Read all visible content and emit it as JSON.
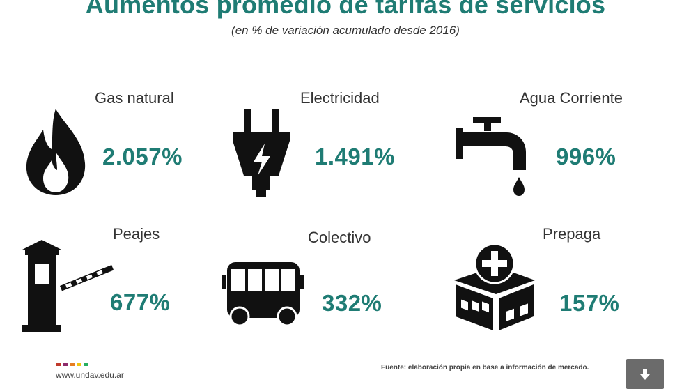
{
  "header": {
    "title": "Aumentos promedio de tarifas de servicios",
    "subtitle": "(en % de variación acumulado desde 2016)"
  },
  "items": [
    {
      "label": "Gas natural",
      "value": "2.057%",
      "icon": "flame-icon"
    },
    {
      "label": "Electricidad",
      "value": "1.491%",
      "icon": "plug-icon"
    },
    {
      "label": "Agua Corriente",
      "value": "996%",
      "icon": "faucet-icon"
    },
    {
      "label": "Peajes",
      "value": "677%",
      "icon": "toll-booth-icon"
    },
    {
      "label": "Colectivo",
      "value": "332%",
      "icon": "bus-icon"
    },
    {
      "label": "Prepaga",
      "value": "157%",
      "icon": "hospital-icon"
    }
  ],
  "footer": {
    "url": "www.undav.edu.ar",
    "source": "Fuente: elaboración propia en base a información de mercado.",
    "dot_colors": [
      "#c0392b",
      "#8e2a6b",
      "#e67e22",
      "#f1c40f",
      "#27ae60"
    ],
    "download_icon": "download-arrow-icon"
  },
  "colors": {
    "accent": "#1f7c74",
    "text": "#333333"
  }
}
